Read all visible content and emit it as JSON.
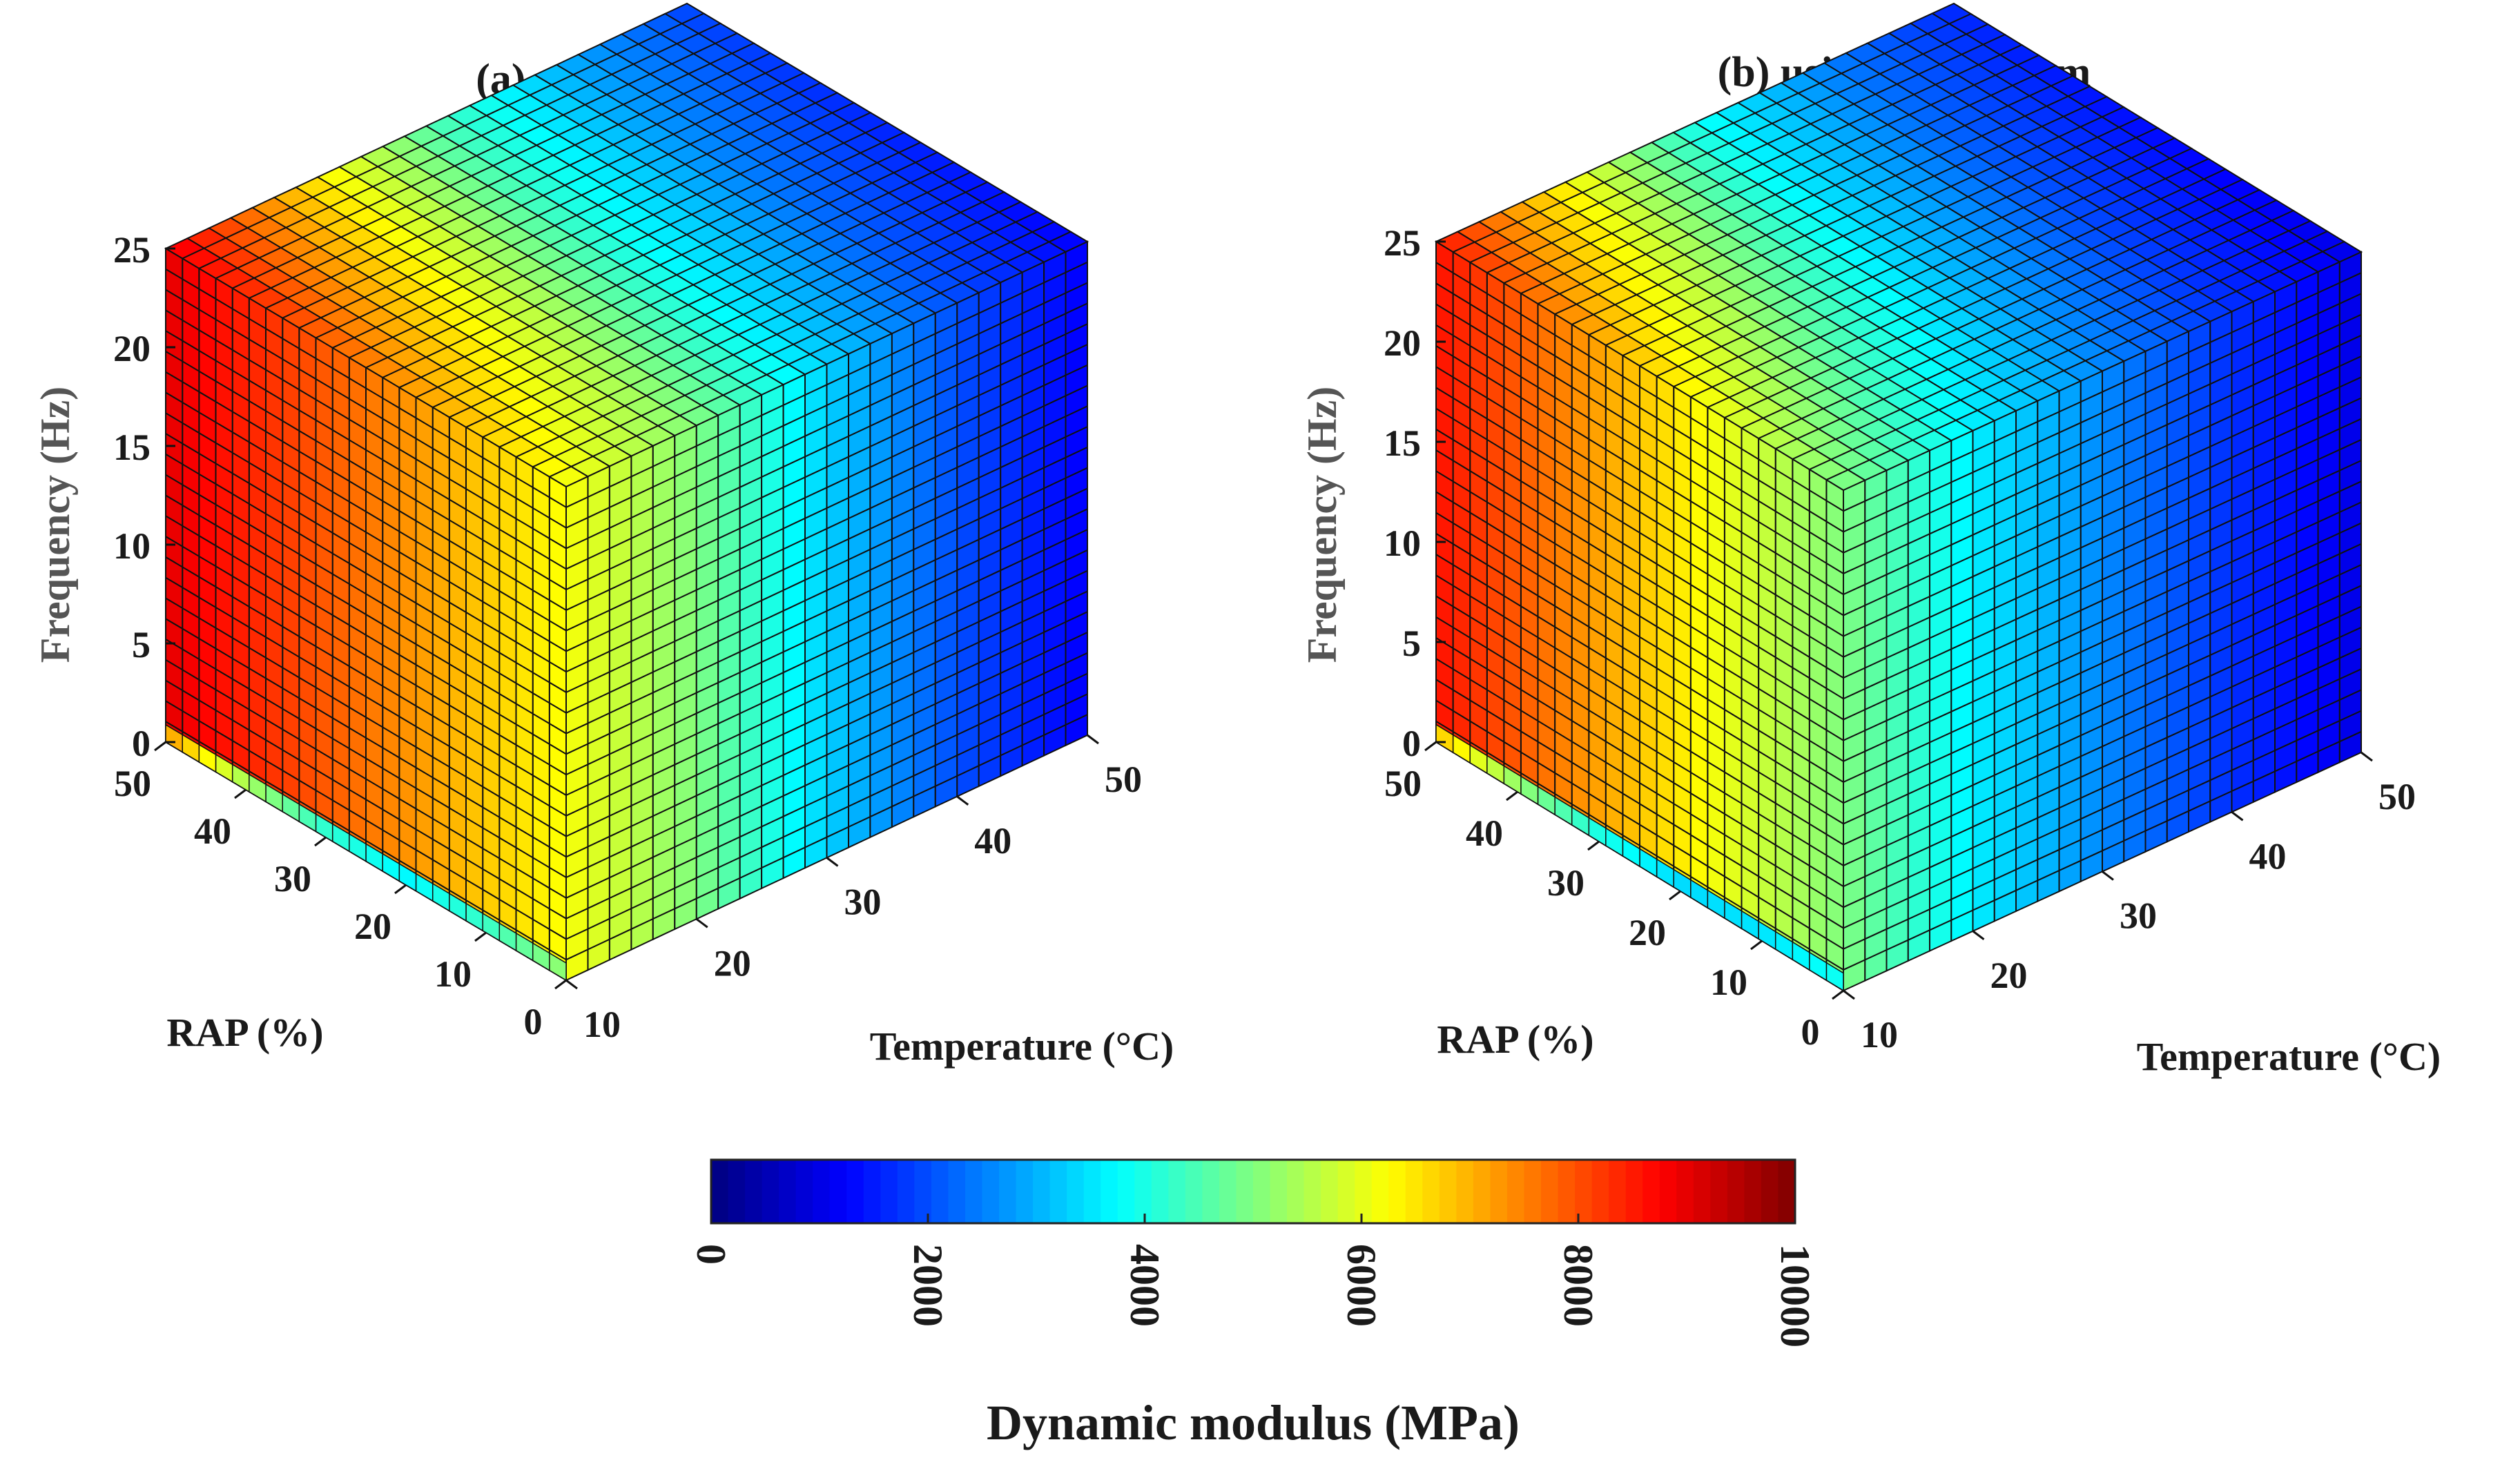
{
  "chart_data": {
    "type": "heatmap",
    "colorbar": {
      "label": "Dynamic modulus (MPa)",
      "range": [
        0,
        10000
      ],
      "ticks": [
        "0",
        "2000",
        "4000",
        "6000",
        "8000",
        "10000"
      ],
      "colormap": "jet"
    },
    "panels": [
      {
        "title": "(a) using Sasobit",
        "axes": {
          "temperature": {
            "label": "Temperature  (°C)",
            "range": [
              10,
              50
            ],
            "ticks": [
              "10",
              "20",
              "30",
              "40",
              "50"
            ]
          },
          "rap": {
            "label": "RAP (%)",
            "range": [
              0,
              50
            ],
            "ticks": [
              "0",
              "10",
              "20",
              "30",
              "40",
              "50"
            ]
          },
          "frequency": {
            "label": "Frequency (Hz)",
            "range": [
              0,
              25
            ],
            "ticks": [
              "0",
              "5",
              "10",
              "15",
              "20",
              "25"
            ]
          }
        },
        "modulus_profile": {
          "temperature": [
            10,
            20,
            30,
            40,
            50
          ],
          "at_rap_0": [
            6200,
            5000,
            3300,
            2000,
            1200
          ],
          "at_rap_50": [
            9000,
            6800,
            4600,
            3000,
            1900
          ]
        },
        "base_front_edge": {
          "rap": [
            0,
            10,
            20,
            30,
            40,
            50
          ],
          "modulus": [
            5200,
            4300,
            3700,
            4200,
            5400,
            7200
          ]
        }
      },
      {
        "title": "(b) using Zycotherm",
        "axes": {
          "temperature": {
            "label": "Temperature (°C)",
            "range": [
              10,
              50
            ],
            "ticks": [
              "10",
              "20",
              "30",
              "40",
              "50"
            ]
          },
          "rap": {
            "label": "RAP (%)",
            "range": [
              0,
              50
            ],
            "ticks": [
              "0",
              "10",
              "20",
              "30",
              "40",
              "50"
            ]
          },
          "frequency": {
            "label": "Frequency (Hz)",
            "range": [
              0,
              25
            ],
            "ticks": [
              "0",
              "5",
              "10",
              "15",
              "20",
              "25"
            ]
          }
        },
        "modulus_profile": {
          "temperature": [
            10,
            20,
            30,
            40,
            50
          ],
          "at_rap_0": [
            5000,
            3600,
            2600,
            1700,
            1000
          ],
          "at_rap_50": [
            8600,
            6300,
            3900,
            2500,
            1600
          ]
        },
        "base_front_edge": {
          "rap": [
            0,
            10,
            20,
            30,
            40,
            50
          ],
          "modulus": [
            3900,
            3500,
            3400,
            4000,
            5200,
            6800
          ]
        }
      }
    ]
  }
}
